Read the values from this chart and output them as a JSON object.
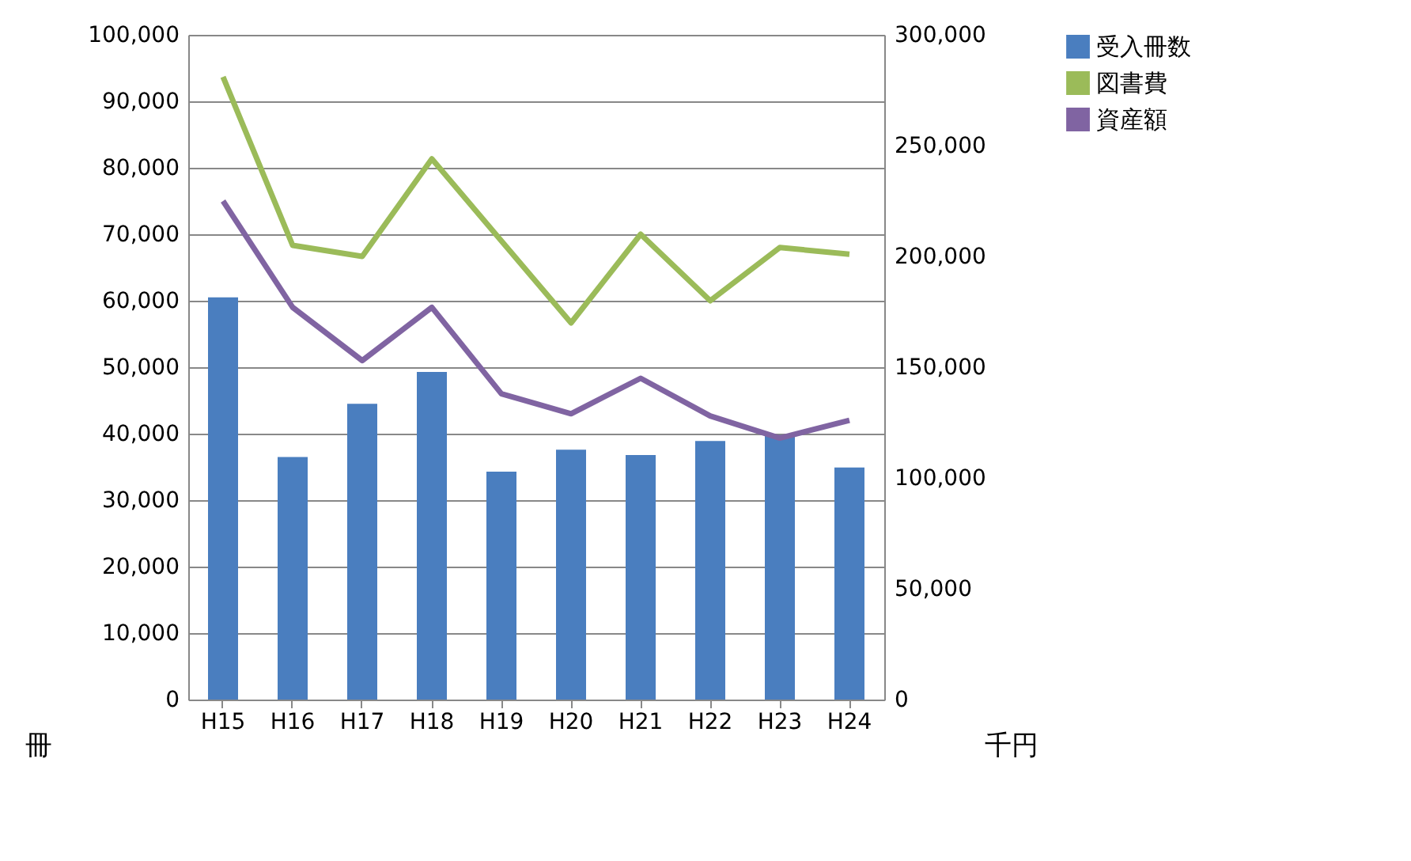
{
  "chart_data": {
    "type": "bar",
    "categories": [
      "H15",
      "H16",
      "H17",
      "H18",
      "H19",
      "H20",
      "H21",
      "H22",
      "H23",
      "H24"
    ],
    "series": [
      {
        "name": "受入冊数",
        "color": "#4a7ebf",
        "values": [
          60500,
          36500,
          44500,
          49300,
          34300,
          37600,
          36800,
          38900,
          39800,
          34900
        ]
      },
      {
        "name": "図書費",
        "type": "line",
        "axis": "y2",
        "color": "#9bbb59",
        "values": [
          281000,
          205000,
          200000,
          244000,
          207000,
          170000,
          210000,
          180000,
          204000,
          201000
        ]
      },
      {
        "name": "資産額",
        "type": "line",
        "axis": "y2",
        "color": "#8064a2",
        "values": [
          225000,
          177000,
          153000,
          177000,
          138000,
          129000,
          145000,
          128000,
          118000,
          126000
        ]
      }
    ],
    "ylabel": "冊",
    "y2label": "千円",
    "ylim": [
      0,
      100000
    ],
    "yticks": [
      0,
      {
        "value": 10000,
        "label": "10,000"
      },
      {
        "value": 20000,
        "label": "20,000"
      },
      {
        "value": 30000,
        "label": "30,000"
      },
      {
        "value": 40000,
        "label": "40,000"
      },
      {
        "value": 50000,
        "label": "50,000"
      },
      {
        "value": 60000,
        "label": "60,000"
      },
      {
        "value": 70000,
        "label": "70,000"
      },
      {
        "value": 80000,
        "label": "80,000"
      },
      {
        "value": 90000,
        "label": "90,000"
      },
      {
        "value": 100000,
        "label": "100,000"
      }
    ],
    "y2lim": [
      0,
      300000
    ],
    "y2ticks": [
      0,
      {
        "value": 50000,
        "label": "50,000"
      },
      {
        "value": 100000,
        "label": "100,000"
      },
      {
        "value": 150000,
        "label": "150,000"
      },
      {
        "value": 200000,
        "label": "200,000"
      },
      {
        "value": 250000,
        "label": "250,000"
      },
      {
        "value": 300000,
        "label": "300,000"
      }
    ],
    "grid": "y",
    "legend": "right",
    "line_style": "solid"
  }
}
